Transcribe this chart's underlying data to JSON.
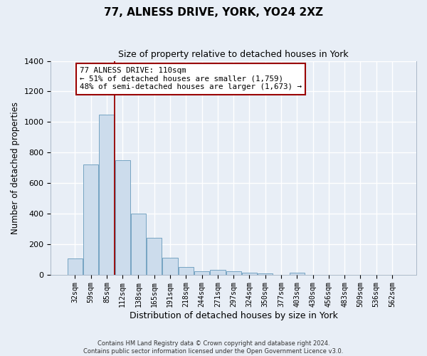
{
  "title": "77, ALNESS DRIVE, YORK, YO24 2XZ",
  "subtitle": "Size of property relative to detached houses in York",
  "xlabel": "Distribution of detached houses by size in York",
  "ylabel": "Number of detached properties",
  "bar_color": "#ccdcec",
  "bar_edge_color": "#6699bb",
  "bg_color": "#e8eef6",
  "grid_color": "white",
  "categories": [
    "32sqm",
    "59sqm",
    "85sqm",
    "112sqm",
    "138sqm",
    "165sqm",
    "191sqm",
    "218sqm",
    "244sqm",
    "271sqm",
    "297sqm",
    "324sqm",
    "350sqm",
    "377sqm",
    "403sqm",
    "430sqm",
    "456sqm",
    "483sqm",
    "509sqm",
    "536sqm",
    "562sqm"
  ],
  "values": [
    105,
    720,
    1050,
    750,
    400,
    240,
    112,
    48,
    22,
    30,
    22,
    15,
    10,
    0,
    12,
    0,
    0,
    0,
    0,
    0,
    0
  ],
  "ylim": [
    0,
    1400
  ],
  "yticks": [
    0,
    200,
    400,
    600,
    800,
    1000,
    1200,
    1400
  ],
  "vline_index": 3,
  "vline_color": "#990000",
  "annotation_title": "77 ALNESS DRIVE: 110sqm",
  "annotation_line1": "← 51% of detached houses are smaller (1,759)",
  "annotation_line2": "48% of semi-detached houses are larger (1,673) →",
  "annotation_box_color": "white",
  "annotation_box_edge": "#990000",
  "footer1": "Contains HM Land Registry data © Crown copyright and database right 2024.",
  "footer2": "Contains public sector information licensed under the Open Government Licence v3.0."
}
